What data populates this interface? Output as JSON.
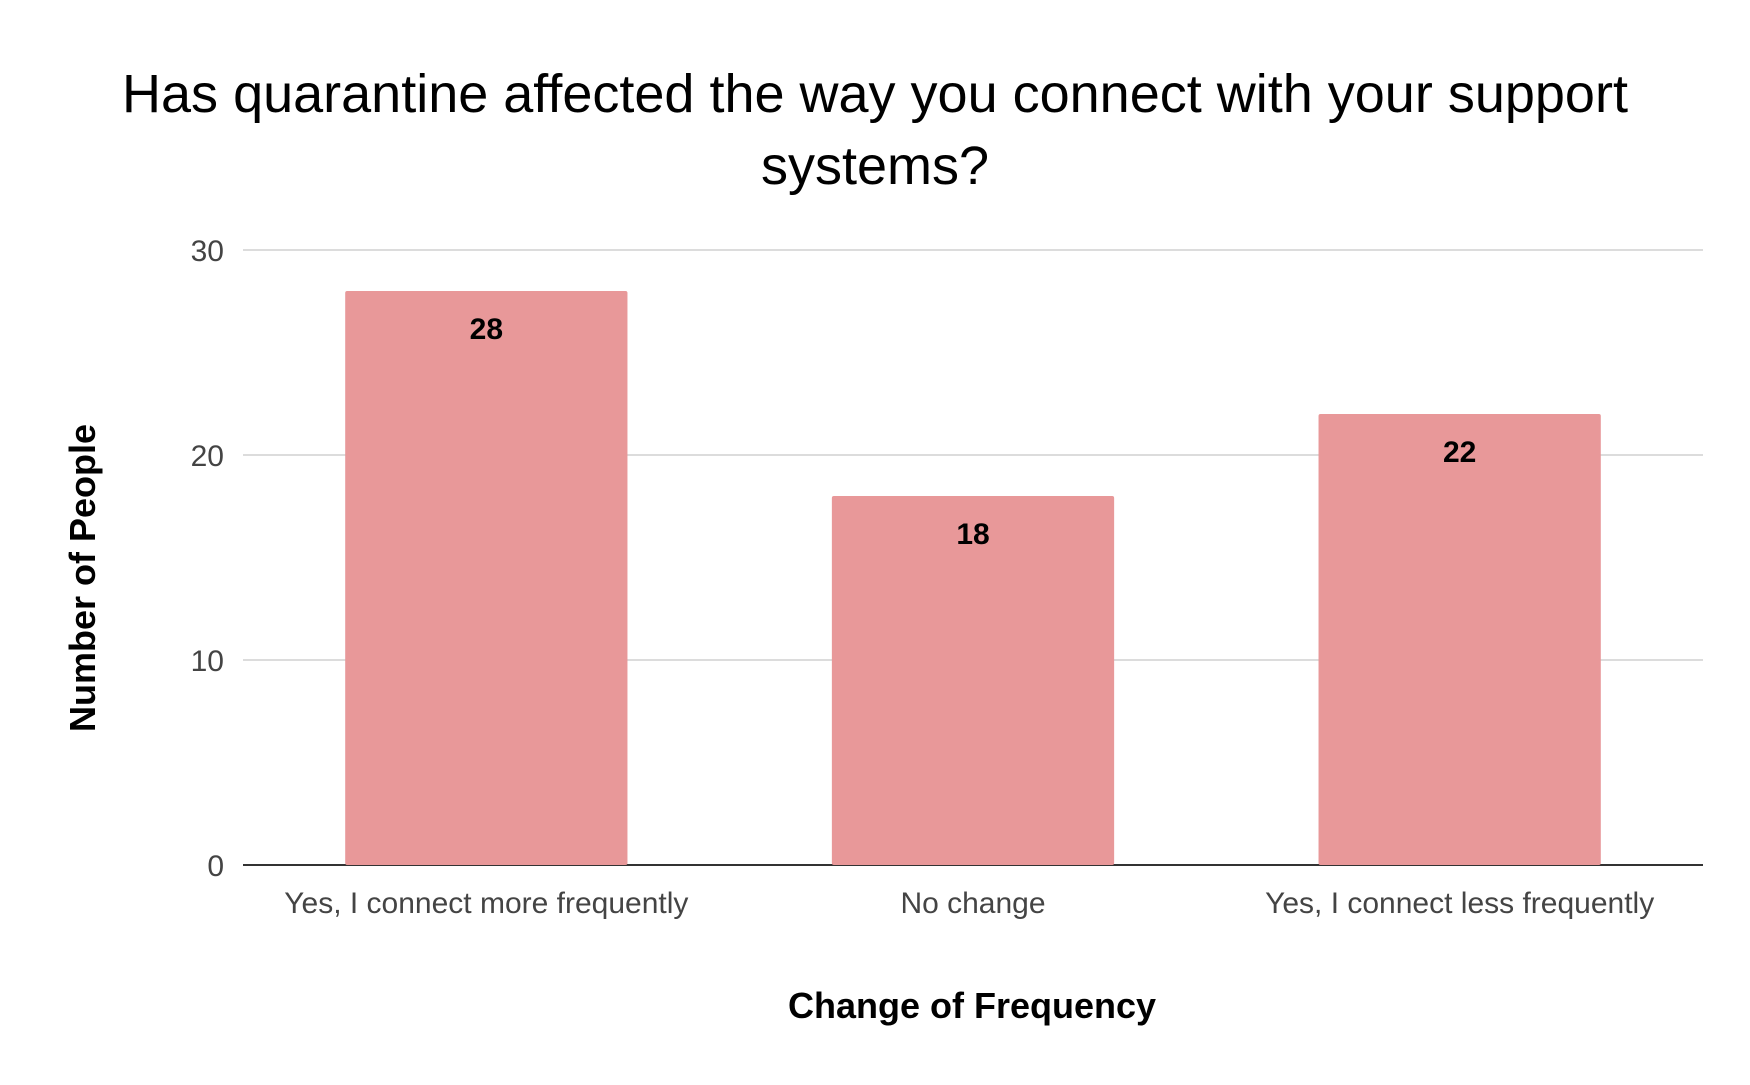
{
  "chart_data": {
    "type": "bar",
    "title": "Has quarantine affected the way you connect with your support systems?",
    "xlabel": "Change of Frequency",
    "ylabel": "Number of People",
    "categories": [
      "Yes, I connect more frequently",
      "No change",
      "Yes, I connect less frequently"
    ],
    "values": [
      28,
      18,
      22
    ],
    "ylim": [
      0,
      30
    ],
    "yticks": [
      "0",
      "10",
      "20",
      "30"
    ],
    "data_labels": [
      "28",
      "18",
      "22"
    ],
    "grid": true,
    "legend": "none",
    "colors": {
      "bar": "#e89899",
      "gridline": "#d0d0d0",
      "axis": "#333333",
      "text": "#000000",
      "tick_text": "#444444"
    }
  }
}
